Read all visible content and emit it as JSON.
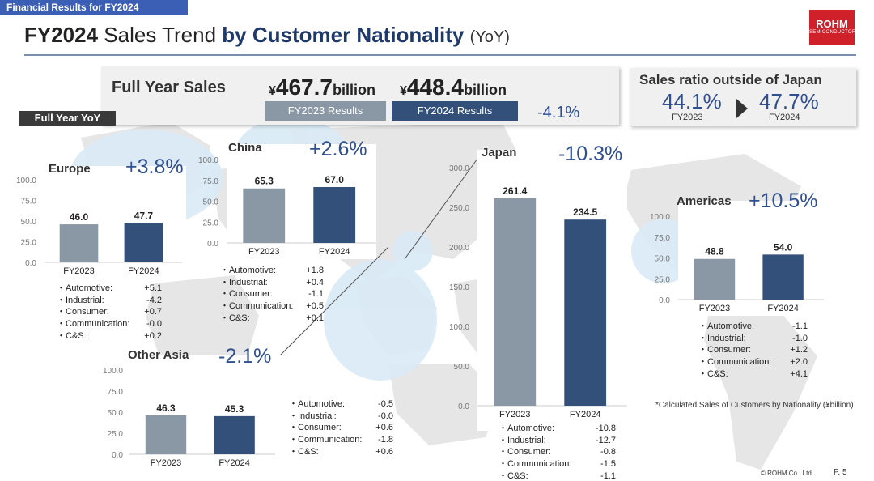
{
  "header": {
    "banner": "Financial Results for FY2024",
    "title_a": "FY2024",
    "title_b": " Sales Trend ",
    "title_c": "by Customer Nationality",
    "title_d": "(YoY)",
    "logo_main": "ROHM",
    "logo_sub": "SEMICONDUCTOR"
  },
  "full_year": {
    "label": "Full Year Sales",
    "fy2023_currency": "¥",
    "fy2023_value": "467.7",
    "fy2023_unit": "billion",
    "fy2024_currency": "¥",
    "fy2024_value": "448.4",
    "fy2024_unit": "billion",
    "fy2023_tag": "FY2023 Results",
    "fy2024_tag": "FY2024 Results",
    "change": "-4.1%",
    "yoy_tag": "Full Year YoY"
  },
  "ratio": {
    "title": "Sales ratio outside of Japan",
    "fy2023_value": "44.1%",
    "fy2023_label": "FY2023",
    "fy2024_value": "47.7%",
    "fy2024_label": "FY2024"
  },
  "colors": {
    "fy2023": "#8a98a6",
    "fy2024": "#33507a",
    "accent": "#2f4f8f",
    "banner": "#3b5fb5"
  },
  "chart_data": [
    {
      "type": "bar",
      "name": "Europe",
      "title": "Europe",
      "delta": "+3.8%",
      "categories": [
        "FY2023",
        "FY2024"
      ],
      "values": [
        46.0,
        47.7
      ],
      "value_labels": [
        "46.0",
        "47.7"
      ],
      "ylim": [
        0,
        100
      ],
      "ticks": [
        "0.0",
        "25.0",
        "50.0",
        "75.0",
        "100.0"
      ],
      "details": [
        {
          "label": "・Automotive:",
          "value": "+5.1"
        },
        {
          "label": "・Industrial:",
          "value": "-4.2"
        },
        {
          "label": "・Consumer:",
          "value": "+0.7"
        },
        {
          "label": "・Communication:",
          "value": "-0.0"
        },
        {
          "label": "・C&S:",
          "value": "+0.2"
        }
      ]
    },
    {
      "type": "bar",
      "name": "China",
      "title": "China",
      "delta": "+2.6%",
      "categories": [
        "FY2023",
        "FY2024"
      ],
      "values": [
        65.3,
        67.0
      ],
      "value_labels": [
        "65.3",
        "67.0"
      ],
      "ylim": [
        0,
        100
      ],
      "ticks": [
        "0.0",
        "25.0",
        "50.0",
        "75.0",
        "100.0"
      ],
      "details": [
        {
          "label": "・Automotive:",
          "value": "+1.8"
        },
        {
          "label": "・Industrial:",
          "value": "+0.4"
        },
        {
          "label": "・Consumer:",
          "value": "-1.1"
        },
        {
          "label": "・Communication:",
          "value": "+0.5"
        },
        {
          "label": "・C&S:",
          "value": "+0.1"
        }
      ]
    },
    {
      "type": "bar",
      "name": "Japan",
      "title": "Japan",
      "delta": "-10.3%",
      "categories": [
        "FY2023",
        "FY2024"
      ],
      "values": [
        261.4,
        234.5
      ],
      "value_labels": [
        "261.4",
        "234.5"
      ],
      "ylim": [
        0,
        300
      ],
      "ticks": [
        "0.0",
        "50.0",
        "100.0",
        "150.0",
        "200.0",
        "250.0",
        "300.0"
      ],
      "details": [
        {
          "label": "・Automotive:",
          "value": "-10.8"
        },
        {
          "label": "・Industrial:",
          "value": "-12.7"
        },
        {
          "label": "・Consumer:",
          "value": "-0.8"
        },
        {
          "label": "・Communication:",
          "value": "-1.5"
        },
        {
          "label": "・C&S:",
          "value": "-1.1"
        }
      ]
    },
    {
      "type": "bar",
      "name": "Americas",
      "title": "Americas",
      "delta": "+10.5%",
      "categories": [
        "FY2023",
        "FY2024"
      ],
      "values": [
        48.8,
        54.0
      ],
      "value_labels": [
        "48.8",
        "54.0"
      ],
      "ylim": [
        0,
        100
      ],
      "ticks": [
        "0.0",
        "25.0",
        "50.0",
        "75.0",
        "100.0"
      ],
      "details": [
        {
          "label": "・Automotive:",
          "value": "-1.1"
        },
        {
          "label": "・Industrial:",
          "value": "-1.0"
        },
        {
          "label": "・Consumer:",
          "value": "+1.2"
        },
        {
          "label": "・Communication:",
          "value": "+2.0"
        },
        {
          "label": "・C&S:",
          "value": "+4.1"
        }
      ]
    },
    {
      "type": "bar",
      "name": "Other Asia",
      "title": "Other Asia",
      "delta": "-2.1%",
      "categories": [
        "FY2023",
        "FY2024"
      ],
      "values": [
        46.3,
        45.3
      ],
      "value_labels": [
        "46.3",
        "45.3"
      ],
      "ylim": [
        0,
        100
      ],
      "ticks": [
        "0.0",
        "25.0",
        "50.0",
        "75.0",
        "100.0"
      ],
      "details": [
        {
          "label": "・Automotive:",
          "value": "-0.5"
        },
        {
          "label": "・Industrial:",
          "value": "-0.0"
        },
        {
          "label": "・Consumer:",
          "value": "+0.6"
        },
        {
          "label": "・Communication:",
          "value": "-1.8"
        },
        {
          "label": "・C&S:",
          "value": "+0.6"
        }
      ]
    }
  ],
  "footer": {
    "note": "*Calculated Sales of Customers by Nationality (¥billion)",
    "copyright": "© ROHM Co., Ltd.",
    "page": "P. 5"
  }
}
